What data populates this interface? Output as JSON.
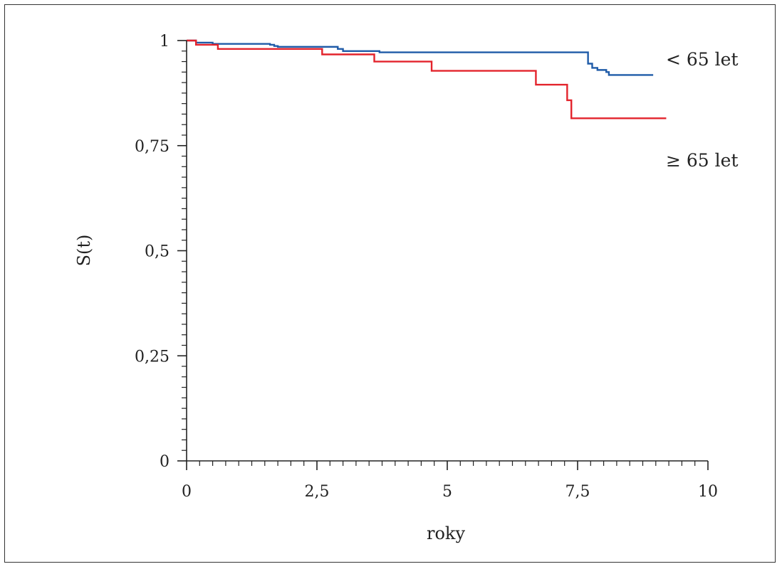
{
  "chart_data": {
    "type": "line",
    "ylabel": "S(t)",
    "xlabel": "roky",
    "xlim": [
      0,
      10
    ],
    "ylim": [
      0,
      1
    ],
    "x_ticks": [
      {
        "value": 0,
        "label": "0"
      },
      {
        "value": 2.5,
        "label": "2,5"
      },
      {
        "value": 5,
        "label": "5"
      },
      {
        "value": 7.5,
        "label": "7,5"
      },
      {
        "value": 10,
        "label": "10"
      }
    ],
    "y_ticks": [
      {
        "value": 0,
        "label": "0"
      },
      {
        "value": 0.25,
        "label": "0,25"
      },
      {
        "value": 0.5,
        "label": "0,5"
      },
      {
        "value": 0.75,
        "label": "0,75"
      },
      {
        "value": 1,
        "label": "1"
      }
    ],
    "grid": false,
    "series": [
      {
        "name": "< 65 let",
        "color": "#1f5ba8",
        "step": true,
        "points": [
          [
            0,
            1.0
          ],
          [
            0.18,
            0.995
          ],
          [
            0.5,
            0.992
          ],
          [
            1.6,
            0.99
          ],
          [
            1.68,
            0.987
          ],
          [
            1.75,
            0.985
          ],
          [
            2.9,
            0.98
          ],
          [
            3.0,
            0.975
          ],
          [
            3.7,
            0.972
          ],
          [
            7.7,
            0.945
          ],
          [
            7.78,
            0.935
          ],
          [
            7.88,
            0.93
          ],
          [
            8.05,
            0.925
          ],
          [
            8.1,
            0.918
          ],
          [
            8.95,
            0.918
          ]
        ]
      },
      {
        "name": "≥ 65 let",
        "color": "#e3232c",
        "step": true,
        "points": [
          [
            0,
            1.0
          ],
          [
            0.18,
            0.99
          ],
          [
            0.6,
            0.98
          ],
          [
            2.6,
            0.967
          ],
          [
            3.6,
            0.95
          ],
          [
            4.7,
            0.928
          ],
          [
            6.7,
            0.895
          ],
          [
            7.3,
            0.858
          ],
          [
            7.38,
            0.815
          ],
          [
            9.2,
            0.815
          ]
        ]
      }
    ]
  }
}
